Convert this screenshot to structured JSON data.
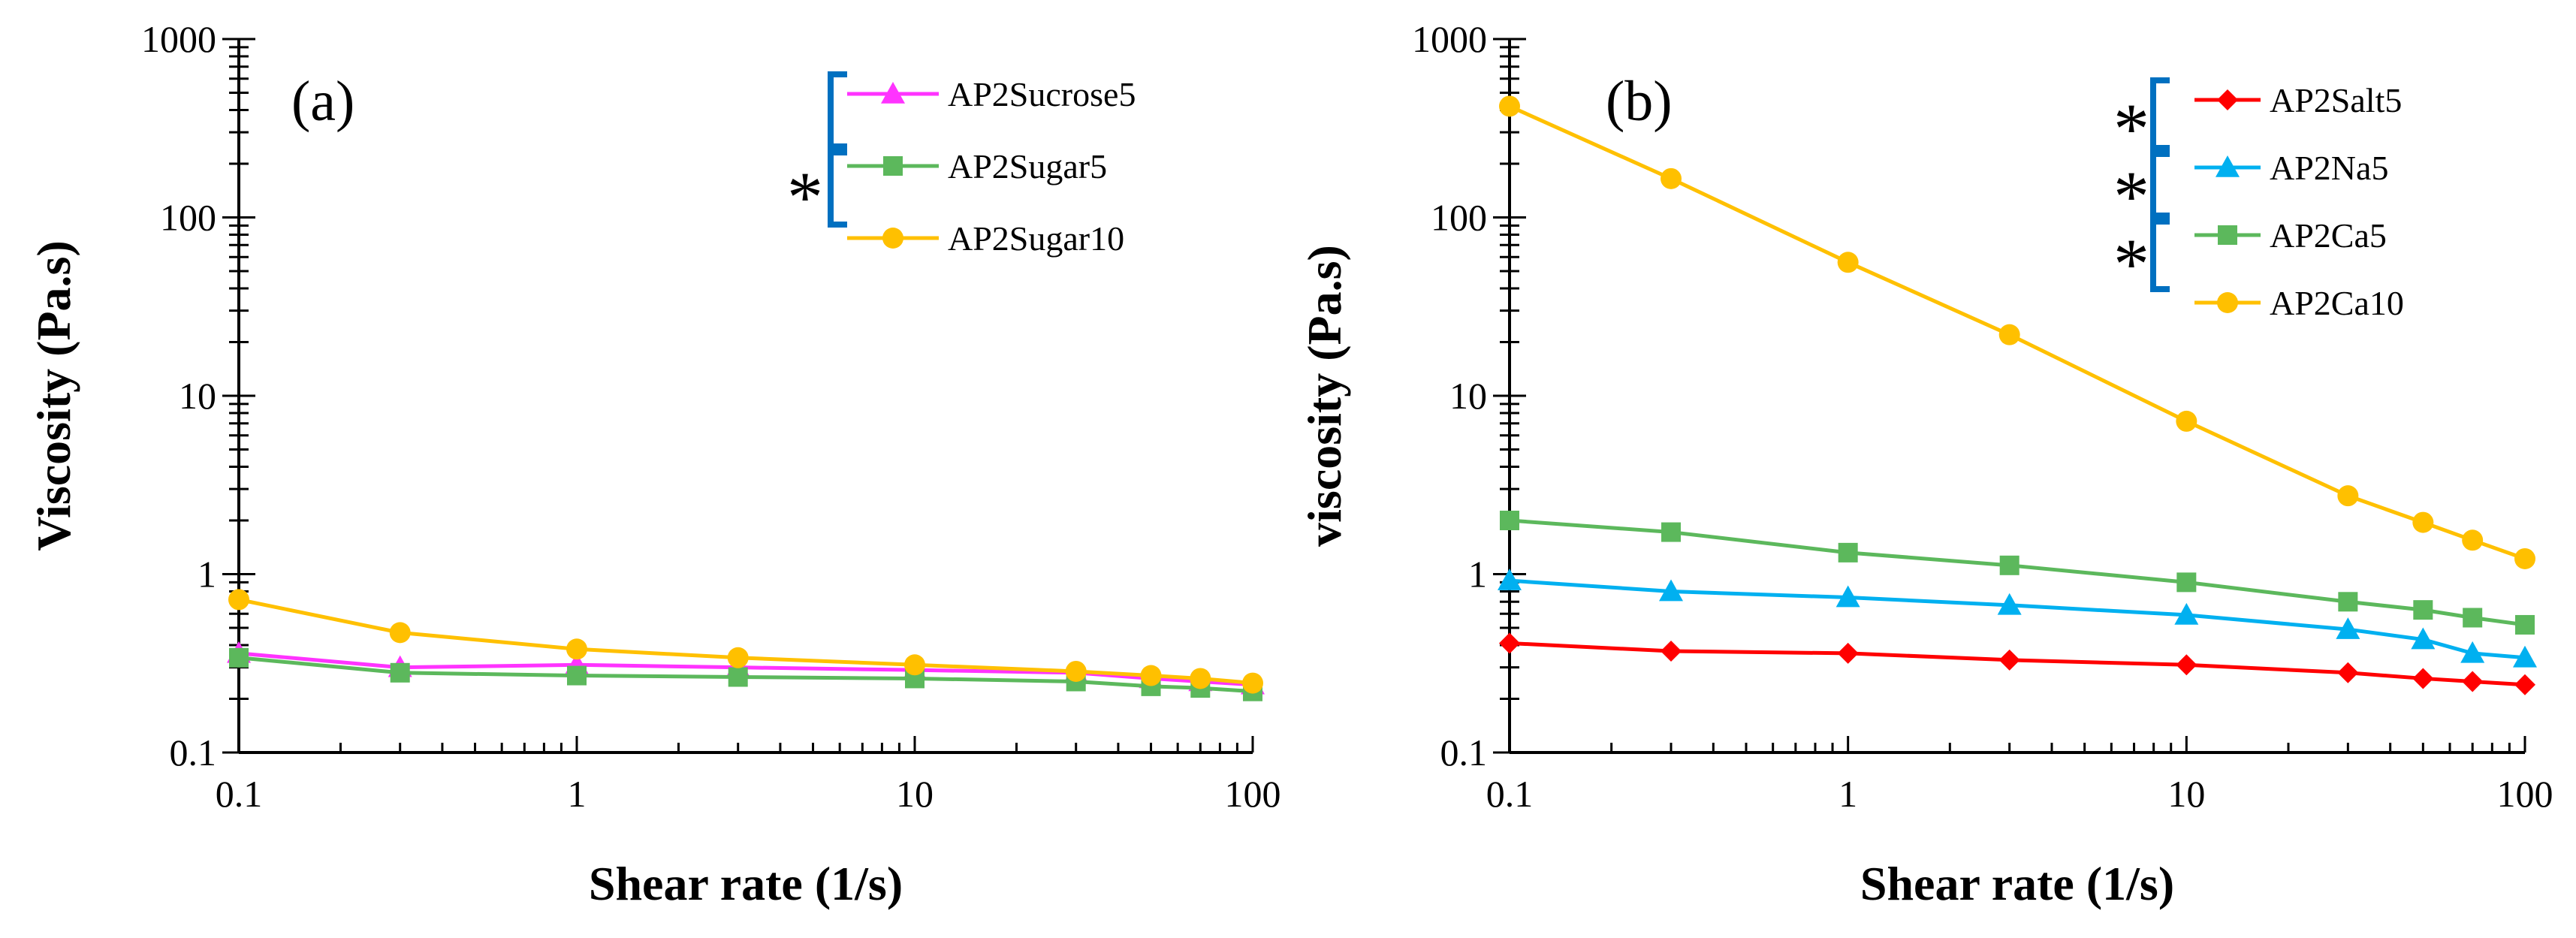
{
  "chart_data": [
    {
      "type": "line",
      "panel_label": "(a)",
      "xlabel": "Shear rate (1/s)",
      "ylabel": "Viscosity (Pa.s)",
      "xscale": "log",
      "yscale": "log",
      "xlim": [
        0.1,
        100
      ],
      "ylim": [
        0.1,
        1000
      ],
      "xticks": [
        "0.1",
        "1",
        "10",
        "100"
      ],
      "yticks": [
        "0.1",
        "1",
        "10",
        "100",
        "1000"
      ],
      "legend_position": "top-right",
      "significance": [
        {
          "symbol": "",
          "between": [
            "AP2Sucrose5",
            "AP2Sugar5"
          ]
        },
        {
          "symbol": "*",
          "between": [
            "AP2Sugar5",
            "AP2Sugar10"
          ]
        }
      ],
      "x": [
        0.1,
        0.3,
        1,
        3,
        10,
        30,
        50,
        70,
        100
      ],
      "series": [
        {
          "name": "AP2Sucrose5",
          "color": "#FF33FF",
          "marker": "triangle",
          "values": [
            0.36,
            0.3,
            0.31,
            0.3,
            0.29,
            0.28,
            0.26,
            0.25,
            0.24
          ]
        },
        {
          "name": "AP2Sugar5",
          "color": "#5CB85C",
          "marker": "square",
          "values": [
            0.34,
            0.28,
            0.27,
            0.265,
            0.26,
            0.25,
            0.235,
            0.23,
            0.22
          ]
        },
        {
          "name": "AP2Sugar10",
          "color": "#FFC000",
          "marker": "circle",
          "values": [
            0.72,
            0.47,
            0.38,
            0.34,
            0.31,
            0.285,
            0.27,
            0.26,
            0.245
          ]
        }
      ]
    },
    {
      "type": "line",
      "panel_label": "(b)",
      "xlabel": "Shear rate (1/s)",
      "ylabel": "viscosity (Pa.s)",
      "xscale": "log",
      "yscale": "log",
      "xlim": [
        0.1,
        100
      ],
      "ylim": [
        0.1,
        1000
      ],
      "xticks": [
        "0.1",
        "1",
        "10",
        "100"
      ],
      "yticks": [
        "0.1",
        "1",
        "10",
        "100",
        "1000"
      ],
      "legend_position": "top-right",
      "significance": [
        {
          "symbol": "*",
          "between": [
            "AP2Salt5",
            "AP2Na5"
          ]
        },
        {
          "symbol": "*",
          "between": [
            "AP2Na5",
            "AP2Ca5"
          ]
        },
        {
          "symbol": "*",
          "between": [
            "AP2Ca5",
            "AP2Ca10"
          ]
        }
      ],
      "x": [
        0.1,
        0.3,
        1,
        3,
        10,
        30,
        50,
        70,
        100
      ],
      "series": [
        {
          "name": "AP2Salt5",
          "color": "#FF0000",
          "marker": "diamond",
          "values": [
            0.41,
            0.37,
            0.36,
            0.33,
            0.31,
            0.28,
            0.26,
            0.25,
            0.24
          ]
        },
        {
          "name": "AP2Na5",
          "color": "#00B0F0",
          "marker": "triangle",
          "values": [
            0.92,
            0.8,
            0.74,
            0.67,
            0.59,
            0.49,
            0.43,
            0.36,
            0.34
          ]
        },
        {
          "name": "AP2Ca5",
          "color": "#5CB85C",
          "marker": "square",
          "values": [
            2.0,
            1.72,
            1.32,
            1.12,
            0.9,
            0.7,
            0.63,
            0.57,
            0.52
          ]
        },
        {
          "name": "AP2Ca10",
          "color": "#FFC000",
          "marker": "circle",
          "values": [
            420,
            165,
            56,
            22,
            7.2,
            2.75,
            1.95,
            1.55,
            1.22
          ]
        }
      ]
    }
  ],
  "bracket_color": "#0070C0"
}
